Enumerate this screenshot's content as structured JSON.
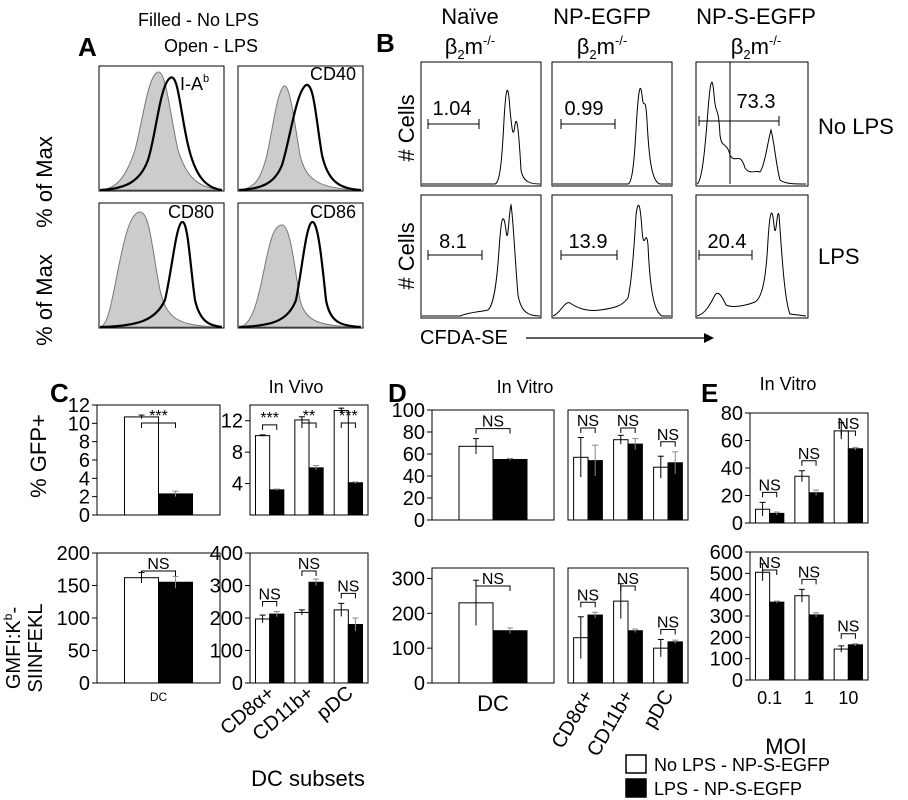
{
  "panel_letters": {
    "a": "A",
    "b": "B",
    "c": "C",
    "d": "D",
    "e": "E"
  },
  "panel_a": {
    "legend_filled": "Filled - No LPS",
    "legend_open": "Open - LPS",
    "ylabel": "% of Max",
    "markers": [
      "I-A",
      "CD40",
      "CD80",
      "CD86"
    ],
    "marker_sup": "b"
  },
  "panel_b": {
    "columns": [
      {
        "line1": "Naïve",
        "line2": "β",
        "sub": "2",
        "tail": "m",
        "sup": "-/-"
      },
      {
        "line1": "NP-EGFP",
        "line2": "β",
        "sub": "2",
        "tail": "m",
        "sup": "-/-"
      },
      {
        "line1": "NP-S-EGFP",
        "line2": "β",
        "sub": "2",
        "tail": "m",
        "sup": "-/-"
      }
    ],
    "row_labels": [
      "No LPS",
      "LPS"
    ],
    "ylabel": "# Cells",
    "xlabel": "CFDA-SE",
    "gate_values": [
      [
        "1.04",
        "0.99",
        "73.3"
      ],
      [
        "8.1",
        "13.9",
        "20.4"
      ]
    ]
  },
  "titles": {
    "c": "In Vivo",
    "d": "In Vitro",
    "e": "In Vitro"
  },
  "ylabels": {
    "gfp": "% GFP+",
    "gmfi_line1": "GMFI:K",
    "gmfi_sup": "b",
    "gmfi_dash": "-",
    "gmfi_line2": "SIINFEKL"
  },
  "xlabels": {
    "dc": "DC",
    "dc_subsets": "DC subsets",
    "moi": "MOI"
  },
  "legend": {
    "open": "No LPS - NP-S-EGFP",
    "filled": "LPS - NP-S-EGFP",
    "open_color": "#ffffff",
    "filled_color": "#000000"
  },
  "sig": {
    "three_star": "***",
    "two_star": "**",
    "ns": "NS"
  },
  "chart_data": [
    {
      "type": "bar",
      "id": "c_gfp_dc",
      "ylabel": "% GFP+",
      "ylim": [
        0,
        12
      ],
      "yticks": [
        0,
        2,
        4,
        6,
        8,
        10,
        12
      ],
      "categories": [
        "DC"
      ],
      "category_labels": [
        ""
      ],
      "series": [
        {
          "name": "No LPS - NP-S-EGFP",
          "values": [
            10.7
          ],
          "errors": [
            0.2
          ]
        },
        {
          "name": "LPS - NP-S-EGFP",
          "values": [
            2.3
          ],
          "errors": [
            0.3
          ]
        }
      ],
      "significance": [
        "***"
      ]
    },
    {
      "type": "bar",
      "id": "c_gfp_subsets",
      "ylim": [
        0,
        14
      ],
      "yticks": [
        4,
        8,
        12
      ],
      "categories": [
        "CD8α+",
        "CD11b+",
        "pDC"
      ],
      "category_labels": [
        "",
        "",
        ""
      ],
      "series": [
        {
          "name": "No LPS - NP-S-EGFP",
          "values": [
            10.1,
            12.1,
            13.3
          ],
          "errors": [
            0.1,
            0.4,
            0.3
          ]
        },
        {
          "name": "LPS - NP-S-EGFP",
          "values": [
            3.2,
            6.0,
            4.1
          ],
          "errors": [
            0.1,
            0.3,
            0.1
          ]
        }
      ],
      "significance": [
        "***",
        "**",
        "***"
      ]
    },
    {
      "type": "bar",
      "id": "c_gmfi_dc",
      "ylabel": "GMFI:Kb-SIINFEKL",
      "ylim": [
        0,
        200
      ],
      "yticks": [
        0,
        50,
        100,
        150,
        200
      ],
      "categories": [
        "DC"
      ],
      "category_labels": [
        "DC"
      ],
      "series": [
        {
          "name": "No LPS - NP-S-EGFP",
          "values": [
            162
          ],
          "errors": [
            8
          ]
        },
        {
          "name": "LPS - NP-S-EGFP",
          "values": [
            155
          ],
          "errors": [
            9
          ]
        }
      ],
      "significance": [
        "NS"
      ]
    },
    {
      "type": "bar",
      "id": "c_gmfi_subsets",
      "xlabel": "DC subsets",
      "ylim": [
        0,
        400
      ],
      "yticks": [
        0,
        100,
        200,
        300,
        400
      ],
      "categories": [
        "CD8α+",
        "CD11b+",
        "pDC"
      ],
      "category_labels": [
        "CD8α+",
        "CD11b+",
        "pDC"
      ],
      "series": [
        {
          "name": "No LPS - NP-S-EGFP",
          "values": [
            197,
            217,
            225
          ],
          "errors": [
            12,
            8,
            20
          ]
        },
        {
          "name": "LPS - NP-S-EGFP",
          "values": [
            212,
            310,
            180
          ],
          "errors": [
            8,
            10,
            20
          ]
        }
      ],
      "significance": [
        "NS",
        "NS",
        "NS"
      ]
    },
    {
      "type": "bar",
      "id": "d_gfp_dc",
      "ylim": [
        0,
        100
      ],
      "yticks": [
        0,
        20,
        40,
        60,
        80,
        100
      ],
      "categories": [
        "DC"
      ],
      "category_labels": [
        ""
      ],
      "series": [
        {
          "name": "No LPS - NP-S-EGFP",
          "values": [
            67
          ],
          "errors": [
            7
          ]
        },
        {
          "name": "LPS - NP-S-EGFP",
          "values": [
            55
          ],
          "errors": [
            1
          ]
        }
      ],
      "significance": [
        "NS"
      ]
    },
    {
      "type": "bar",
      "id": "d_gfp_subsets",
      "ylim": [
        0,
        100
      ],
      "yticks": [],
      "categories": [
        "CD8α+",
        "CD11b+",
        "pDC"
      ],
      "category_labels": [
        "",
        "",
        ""
      ],
      "series": [
        {
          "name": "No LPS - NP-S-EGFP",
          "values": [
            57,
            73,
            48
          ],
          "errors": [
            18,
            4,
            10
          ]
        },
        {
          "name": "LPS - NP-S-EGFP",
          "values": [
            54,
            69,
            52
          ],
          "errors": [
            14,
            5,
            10
          ]
        }
      ],
      "significance": [
        "NS",
        "NS",
        "NS"
      ]
    },
    {
      "type": "bar",
      "id": "d_gmfi_dc",
      "xlabel": "DC",
      "ylim": [
        0,
        330
      ],
      "yticks": [
        0,
        100,
        200,
        300
      ],
      "categories": [
        "DC"
      ],
      "category_labels": [
        "DC"
      ],
      "series": [
        {
          "name": "No LPS - NP-S-EGFP",
          "values": [
            230
          ],
          "errors": [
            65
          ]
        },
        {
          "name": "LPS - NP-S-EGFP",
          "values": [
            150
          ],
          "errors": [
            8
          ]
        }
      ],
      "significance": [
        "NS"
      ]
    },
    {
      "type": "bar",
      "id": "d_gmfi_subsets",
      "ylim": [
        0,
        330
      ],
      "yticks": [],
      "categories": [
        "CD8α+",
        "CD11b+",
        "pDC"
      ],
      "category_labels": [
        "CD8α+",
        "CD11b+",
        "pDC"
      ],
      "series": [
        {
          "name": "No LPS - NP-S-EGFP",
          "values": [
            130,
            235,
            100
          ],
          "errors": [
            60,
            50,
            25
          ]
        },
        {
          "name": "LPS - NP-S-EGFP",
          "values": [
            195,
            150,
            118
          ],
          "errors": [
            8,
            5,
            5
          ]
        }
      ],
      "significance": [
        "NS",
        "NS",
        "NS"
      ]
    },
    {
      "type": "bar",
      "id": "e_gfp_moi",
      "ylim": [
        0,
        80
      ],
      "yticks": [
        0,
        20,
        40,
        60,
        80
      ],
      "categories": [
        "0.1",
        "1",
        "10"
      ],
      "category_labels": [
        "",
        "",
        ""
      ],
      "series": [
        {
          "name": "No LPS - NP-S-EGFP",
          "values": [
            10,
            34,
            67
          ],
          "errors": [
            5,
            4,
            6
          ]
        },
        {
          "name": "LPS - NP-S-EGFP",
          "values": [
            7,
            22,
            54
          ],
          "errors": [
            1,
            2,
            1
          ]
        }
      ],
      "significance": [
        "NS",
        "NS",
        "NS"
      ]
    },
    {
      "type": "bar",
      "id": "e_gmfi_moi",
      "xlabel": "MOI",
      "ylim": [
        0,
        600
      ],
      "yticks": [
        0,
        100,
        200,
        300,
        400,
        500,
        600
      ],
      "categories": [
        "0.1",
        "1",
        "10"
      ],
      "category_labels": [
        "0.1",
        "1",
        "10"
      ],
      "series": [
        {
          "name": "No LPS - NP-S-EGFP",
          "values": [
            505,
            395,
            145
          ],
          "errors": [
            40,
            30,
            15
          ]
        },
        {
          "name": "LPS - NP-S-EGFP",
          "values": [
            365,
            305,
            165
          ],
          "errors": [
            5,
            10,
            5
          ]
        }
      ],
      "significance": [
        "NS",
        "NS",
        "NS"
      ]
    }
  ]
}
